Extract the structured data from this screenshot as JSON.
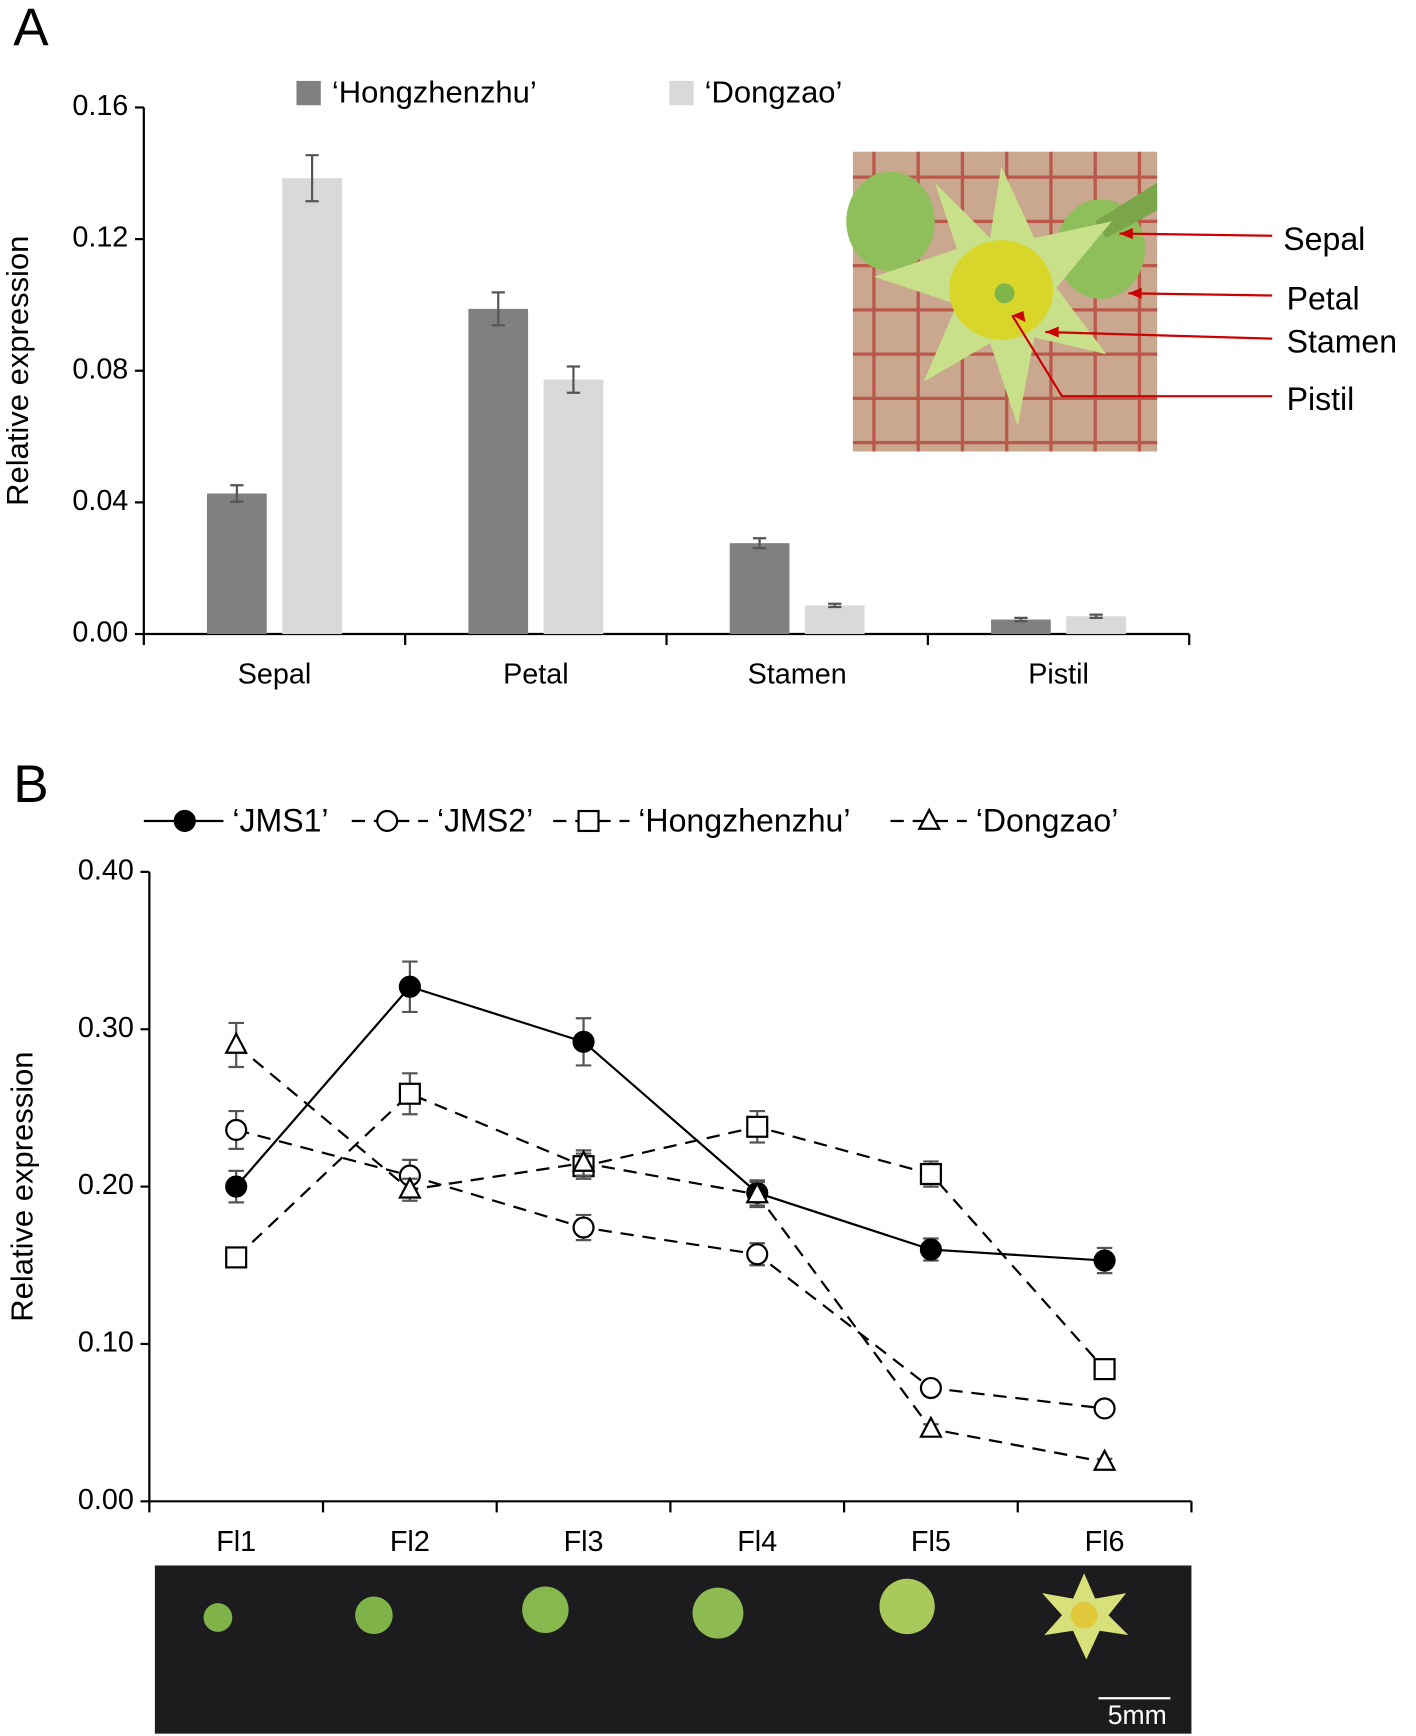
{
  "chart_data": [
    {
      "type": "bar",
      "panel_label": "A",
      "ylabel": "Relative expression",
      "categories": [
        "Sepal",
        "Petal",
        "Stamen",
        "Pistil"
      ],
      "series": [
        {
          "name": "‘Hongzhenzhu’",
          "color": "#808080",
          "values": [
            0.0427,
            0.0988,
            0.0276,
            0.0044
          ],
          "errors": [
            0.0025,
            0.005,
            0.0015,
            0.0005
          ]
        },
        {
          "name": "‘Dongzao’",
          "color": "#d9d9d9",
          "values": [
            0.1385,
            0.0773,
            0.0087,
            0.0054
          ],
          "errors": [
            0.007,
            0.004,
            0.0005,
            0.0005
          ]
        }
      ],
      "ylim": [
        0,
        0.16
      ],
      "yticks": [
        {
          "value": 0,
          "label": "0.00"
        },
        0.04,
        0.08,
        0.12,
        0.16
      ],
      "error_color": "#555555",
      "annotations": [
        "Sepal",
        "Petal",
        "Stamen",
        "Pistil"
      ],
      "annotation_color": "#cc0000"
    },
    {
      "type": "line",
      "panel_label": "B",
      "ylabel": "Relative expression",
      "categories": [
        "Fl1",
        "Fl2",
        "Fl3",
        "Fl4",
        "Fl5",
        "Fl6"
      ],
      "series": [
        {
          "name": "‘JMS1’",
          "color": "#000000",
          "marker": "circle",
          "filled": true,
          "dashed": false,
          "values": [
            0.2,
            0.327,
            0.292,
            0.196,
            0.16,
            0.153
          ],
          "errors": [
            0.01,
            0.016,
            0.015,
            0.008,
            0.007,
            0.008
          ]
        },
        {
          "name": "‘JMS2’",
          "color": "#000000",
          "marker": "circle",
          "filled": false,
          "dashed": true,
          "values": [
            0.236,
            0.207,
            0.174,
            0.157,
            0.072,
            0.059
          ],
          "errors": [
            0.012,
            0.01,
            0.008,
            0.007,
            0.004,
            0.003
          ]
        },
        {
          "name": "‘Hongzhenzhu’",
          "color": "#000000",
          "marker": "square",
          "filled": false,
          "dashed": true,
          "values": [
            0.155,
            0.259,
            0.213,
            0.238,
            0.208,
            0.084
          ],
          "errors": [
            0.006,
            0.013,
            0.008,
            0.01,
            0.008,
            0.004
          ]
        },
        {
          "name": "‘Dongzao’",
          "color": "#000000",
          "marker": "triangle",
          "filled": false,
          "dashed": true,
          "values": [
            0.29,
            0.198,
            0.215,
            0.195,
            0.046,
            0.025
          ],
          "errors": [
            0.014,
            0.007,
            0.008,
            0.008,
            0.003,
            0.002
          ]
        }
      ],
      "ylim": [
        0,
        0.4
      ],
      "yticks": [
        {
          "value": 0,
          "label": "0.00"
        },
        {
          "value": 0.1,
          "label": "0.10"
        },
        {
          "value": 0.2,
          "label": "0.20"
        },
        {
          "value": 0.3,
          "label": "0.30"
        },
        {
          "value": 0.4,
          "label": "0.40"
        }
      ],
      "error_color": "#555555",
      "scale_label": "5mm"
    }
  ]
}
